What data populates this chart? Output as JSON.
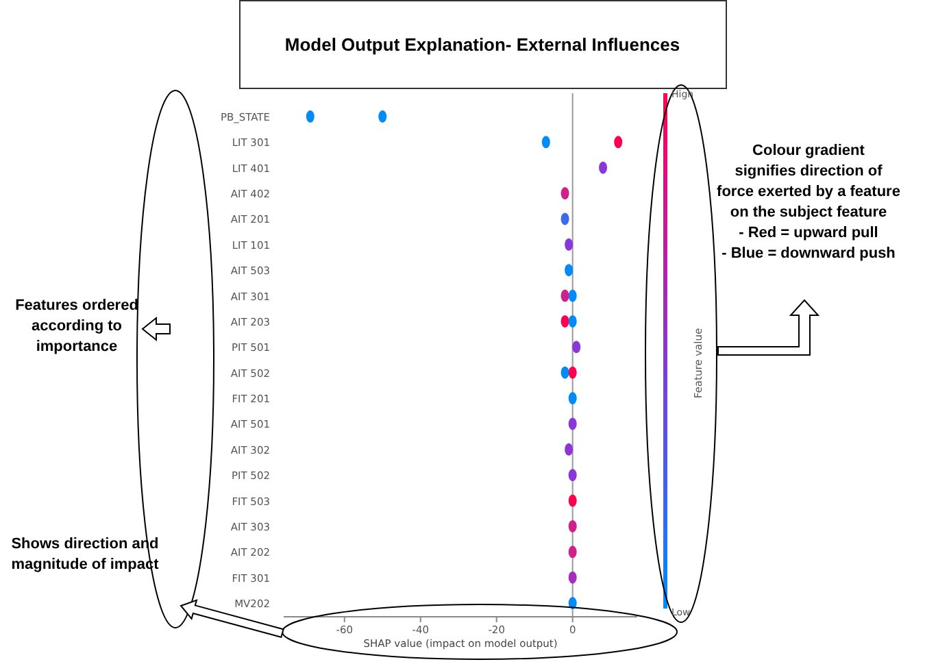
{
  "chart_data": {
    "type": "scatter",
    "title": "Model Output Explanation- External Influences",
    "xlabel": "SHAP value (impact on model output)",
    "clabel": "Feature value",
    "orientation": "horizontal",
    "categories": [
      "PB_STATE",
      "LIT 301",
      "LIT 401",
      "AIT 402",
      "AIT 201",
      "LIT 101",
      "AIT 503",
      "AIT 301",
      "AIT 203",
      "PIT 501",
      "AIT 502",
      "FIT 201",
      "AIT 501",
      "AIT 302",
      "PIT 502",
      "FIT 503",
      "AIT 303",
      "AIT 202",
      "FIT 301",
      "MV202"
    ],
    "series": [
      {
        "values": [
          -69,
          12,
          8,
          -2,
          -2,
          -1,
          -1,
          -2,
          -2,
          1,
          -2,
          0,
          0,
          -1,
          0,
          0,
          0,
          0,
          0,
          0
        ],
        "colors": [
          "#008bfb",
          "#ff0051",
          "#8a36d8",
          "#d0208a",
          "#3d6ae8",
          "#8a36d8",
          "#008bfb",
          "#d0208a",
          "#ff0051",
          "#8a36d8",
          "#008bfb",
          "#008bfb",
          "#8a36d8",
          "#8a36d8",
          "#8a36d8",
          "#ff0051",
          "#d0208a",
          "#d0208a",
          "#a52dc0",
          "#008bfb"
        ]
      },
      {
        "values": [
          -50,
          -7,
          null,
          null,
          null,
          null,
          null,
          0,
          0,
          null,
          0,
          null,
          null,
          null,
          null,
          null,
          null,
          null,
          null,
          null
        ],
        "colors": [
          "#008bfb",
          "#008bfb",
          null,
          null,
          null,
          null,
          null,
          "#008bfb",
          "#008bfb",
          null,
          "#ff0051",
          null,
          null,
          null,
          null,
          null,
          null,
          null,
          null,
          null
        ]
      }
    ],
    "xlim": [
      -76,
      17
    ],
    "xticks": [
      -60,
      -40,
      -20,
      0
    ],
    "ref_lines": [
      {
        "axis": "x",
        "value": 0,
        "color": "#999999"
      }
    ],
    "annotations": [
      "Features ordered\naccording to\nimportance",
      "Shows direction and\nmagnitude of impact",
      "Colour gradient\nsignifies direction of\nforce exerted by a feature\non the subject feature\n- Red = upward pull\n- Blue = downward push",
      "High",
      "Low"
    ]
  }
}
